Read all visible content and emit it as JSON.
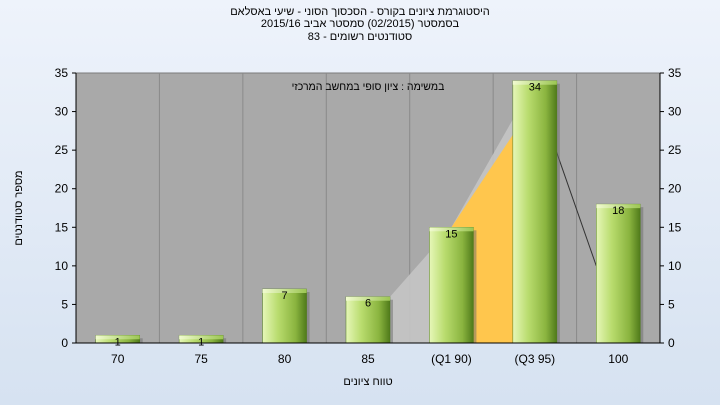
{
  "chart_data": {
    "type": "bar",
    "title_lines": [
      "היסטוגרמת ציונים בקורס - הסכסוך הסוני - שיעי באסלאם",
      "בסמסטר  (02/2015)  סמסטר אביב 2015/16",
      "סטודנטים רשומים - 83"
    ],
    "annotation": "במשימה : ציון סופי במחשב המרכזי",
    "xlabel": "טווח ציונים",
    "ylabel": "מספר סטודנטים",
    "categories": [
      "70",
      "75",
      "80",
      "85",
      "(Q1 90)",
      "(Q3 95)",
      "100"
    ],
    "values": [
      1,
      1,
      7,
      6,
      15,
      34,
      18
    ],
    "data_labels": [
      "1",
      "1",
      "7",
      "6",
      "15",
      "34",
      "18"
    ],
    "ylim": [
      0,
      35
    ],
    "yticks": [
      "0",
      "5",
      "10",
      "15",
      "20",
      "25",
      "30",
      "35"
    ],
    "grid": "vertical",
    "legend": "none",
    "colors": {
      "plot_bg": "#a9a9a9",
      "bar_light": "#d2ec94",
      "bar_mid": "#9dc452",
      "bar_dark": "#5e8a22",
      "quartile_fill": "#ffc64d",
      "range_fill": "#c4c4c4"
    }
  }
}
